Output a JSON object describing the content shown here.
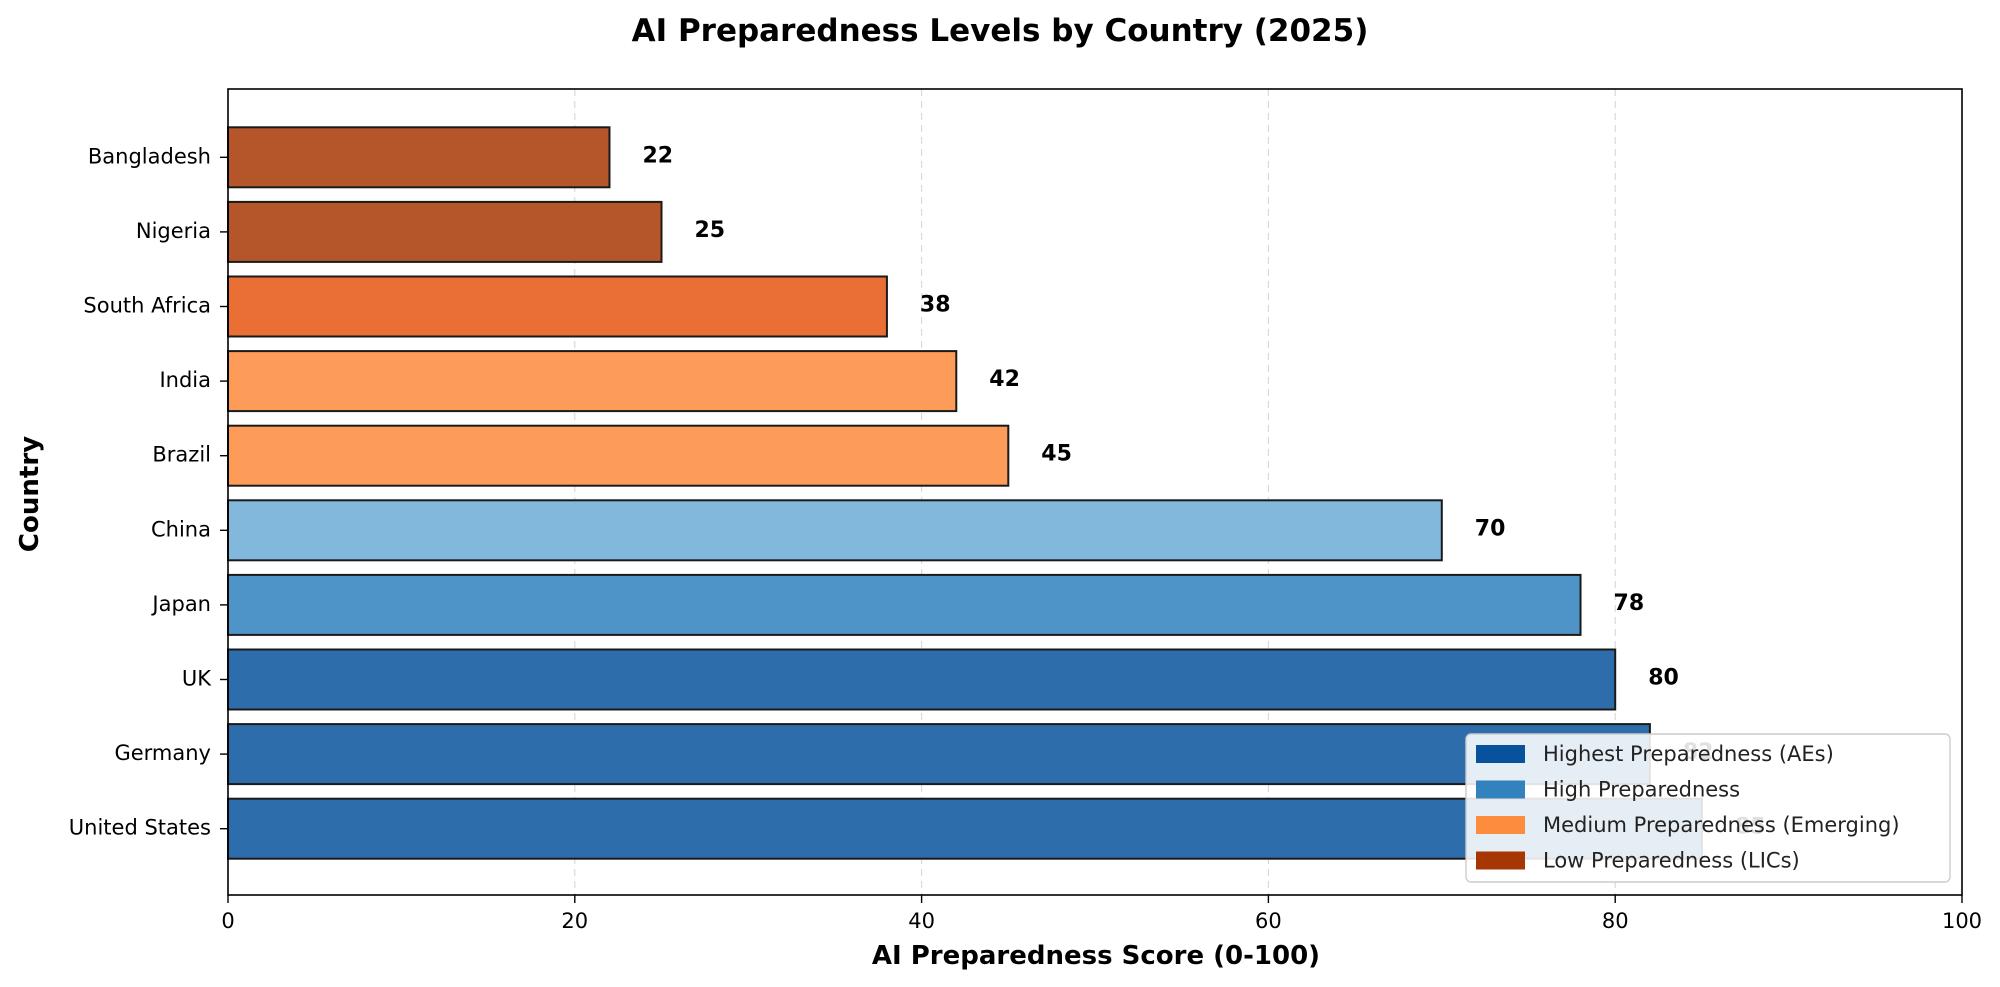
{
  "chart_data": {
    "type": "bar",
    "orientation": "horizontal",
    "title": "AI Preparedness Levels by Country (2025)",
    "xlabel": "AI Preparedness Score (0-100)",
    "ylabel": "Country",
    "xlim": [
      0,
      100
    ],
    "xticks": [
      "0",
      "20",
      "40",
      "60",
      "80",
      "100"
    ],
    "grid": "vertical dashed",
    "legend_position": "bottom-right",
    "categories": [
      "United States",
      "Germany",
      "UK",
      "Japan",
      "China",
      "Brazil",
      "India",
      "South Africa",
      "Nigeria",
      "Bangladesh"
    ],
    "values": [
      85,
      82,
      80,
      78,
      70,
      45,
      42,
      38,
      25,
      22
    ],
    "bar_colors": [
      "#2e6dab",
      "#2e6dab",
      "#2e6dab",
      "#4f94c8",
      "#82b8dc",
      "#fd9c58",
      "#fd9c58",
      "#ea6f35",
      "#b4562a",
      "#b4562a"
    ],
    "legend": [
      {
        "label": "Highest Preparedness (AEs)",
        "color": "#08519c"
      },
      {
        "label": "High Preparedness",
        "color": "#3182bd"
      },
      {
        "label": "Medium Preparedness (Emerging)",
        "color": "#fd8d3c"
      },
      {
        "label": "Low Preparedness (LICs)",
        "color": "#a63603"
      }
    ]
  }
}
